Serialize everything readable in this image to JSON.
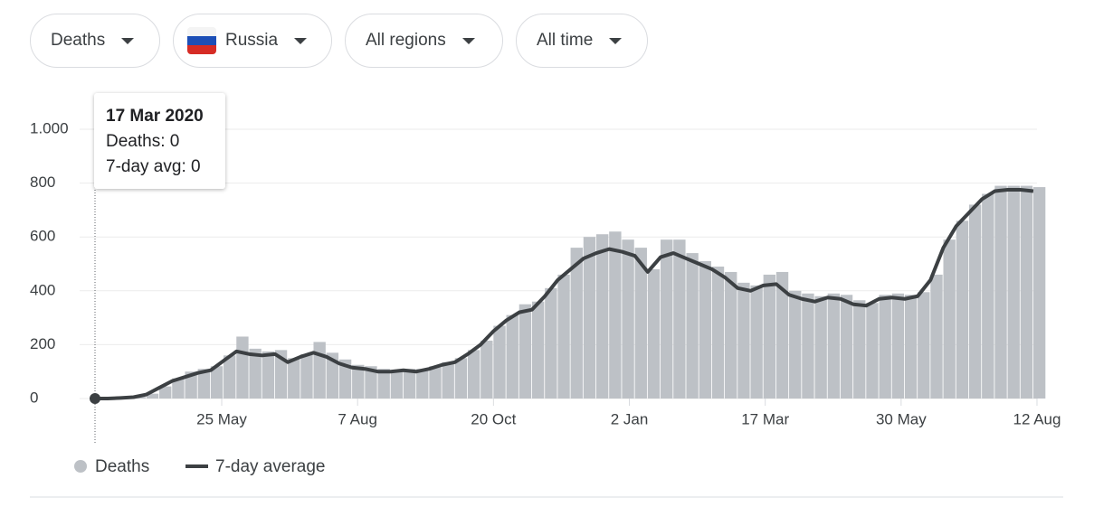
{
  "filters": [
    "Deaths",
    "Russia",
    "All regions",
    "All time"
  ],
  "tooltip": {
    "title": "17 Mar 2020",
    "lines": [
      "Deaths: 0",
      "7-day avg: 0"
    ]
  },
  "chart_data": {
    "type": "bar-line",
    "x": [
      "2020-03-17",
      "2020-03-24",
      "2020-03-31",
      "2020-04-07",
      "2020-04-14",
      "2020-04-21",
      "2020-04-28",
      "2020-05-05",
      "2020-05-12",
      "2020-05-19",
      "2020-05-26",
      "2020-06-02",
      "2020-06-09",
      "2020-06-16",
      "2020-06-23",
      "2020-06-30",
      "2020-07-07",
      "2020-07-14",
      "2020-07-21",
      "2020-07-28",
      "2020-08-04",
      "2020-08-11",
      "2020-08-18",
      "2020-08-25",
      "2020-09-01",
      "2020-09-08",
      "2020-09-15",
      "2020-09-22",
      "2020-09-29",
      "2020-10-06",
      "2020-10-13",
      "2020-10-20",
      "2020-10-27",
      "2020-11-03",
      "2020-11-10",
      "2020-11-17",
      "2020-11-24",
      "2020-12-01",
      "2020-12-08",
      "2020-12-15",
      "2020-12-22",
      "2020-12-29",
      "2021-01-05",
      "2021-01-12",
      "2021-01-19",
      "2021-01-26",
      "2021-02-02",
      "2021-02-09",
      "2021-02-16",
      "2021-02-23",
      "2021-03-02",
      "2021-03-09",
      "2021-03-16",
      "2021-03-23",
      "2021-03-30",
      "2021-04-06",
      "2021-04-13",
      "2021-04-20",
      "2021-04-27",
      "2021-05-04",
      "2021-05-11",
      "2021-05-18",
      "2021-05-25",
      "2021-06-01",
      "2021-06-08",
      "2021-06-15",
      "2021-06-22",
      "2021-06-29",
      "2021-07-06",
      "2021-07-13",
      "2021-07-20",
      "2021-07-27",
      "2021-08-03",
      "2021-08-10"
    ],
    "series": [
      {
        "name": "Deaths",
        "color": "#bdc1c6",
        "values": [
          0,
          0,
          3,
          6,
          18,
          45,
          75,
          100,
          110,
          120,
          160,
          230,
          185,
          175,
          180,
          150,
          165,
          210,
          170,
          145,
          125,
          120,
          110,
          105,
          110,
          110,
          120,
          135,
          150,
          180,
          215,
          270,
          310,
          350,
          360,
          410,
          460,
          560,
          600,
          610,
          620,
          590,
          560,
          480,
          590,
          590,
          540,
          510,
          490,
          470,
          430,
          420,
          460,
          470,
          400,
          390,
          380,
          390,
          385,
          365,
          355,
          385,
          390,
          385,
          395,
          460,
          590,
          660,
          720,
          760,
          790,
          790,
          790,
          785
        ]
      },
      {
        "name": "7-day average",
        "color": "#3c4043",
        "values": [
          0,
          0,
          2,
          5,
          15,
          40,
          65,
          80,
          95,
          105,
          140,
          175,
          165,
          160,
          165,
          135,
          155,
          170,
          155,
          130,
          115,
          110,
          100,
          100,
          105,
          100,
          110,
          125,
          135,
          165,
          200,
          250,
          290,
          320,
          330,
          380,
          440,
          480,
          520,
          540,
          555,
          545,
          530,
          470,
          525,
          540,
          520,
          500,
          480,
          450,
          410,
          400,
          420,
          425,
          385,
          370,
          360,
          375,
          370,
          350,
          345,
          370,
          375,
          370,
          380,
          440,
          560,
          640,
          690,
          740,
          770,
          775,
          775,
          770
        ]
      }
    ],
    "xlim": [
      "2020-03-17",
      "2021-08-12"
    ],
    "xticks": [
      {
        "value": "2020-05-25",
        "label": "25 May"
      },
      {
        "value": "2020-08-07",
        "label": "7 Aug"
      },
      {
        "value": "2020-10-20",
        "label": "20 Oct"
      },
      {
        "value": "2021-01-02",
        "label": "2 Jan"
      },
      {
        "value": "2021-03-17",
        "label": "17 Mar"
      },
      {
        "value": "2021-05-30",
        "label": "30 May"
      },
      {
        "value": "2021-08-12",
        "label": "12 Aug"
      }
    ],
    "ylim": [
      0,
      1000
    ],
    "yticks": [
      0,
      200,
      400,
      600,
      800,
      {
        "value": 1000,
        "label": "1.000"
      }
    ],
    "grid": true
  }
}
